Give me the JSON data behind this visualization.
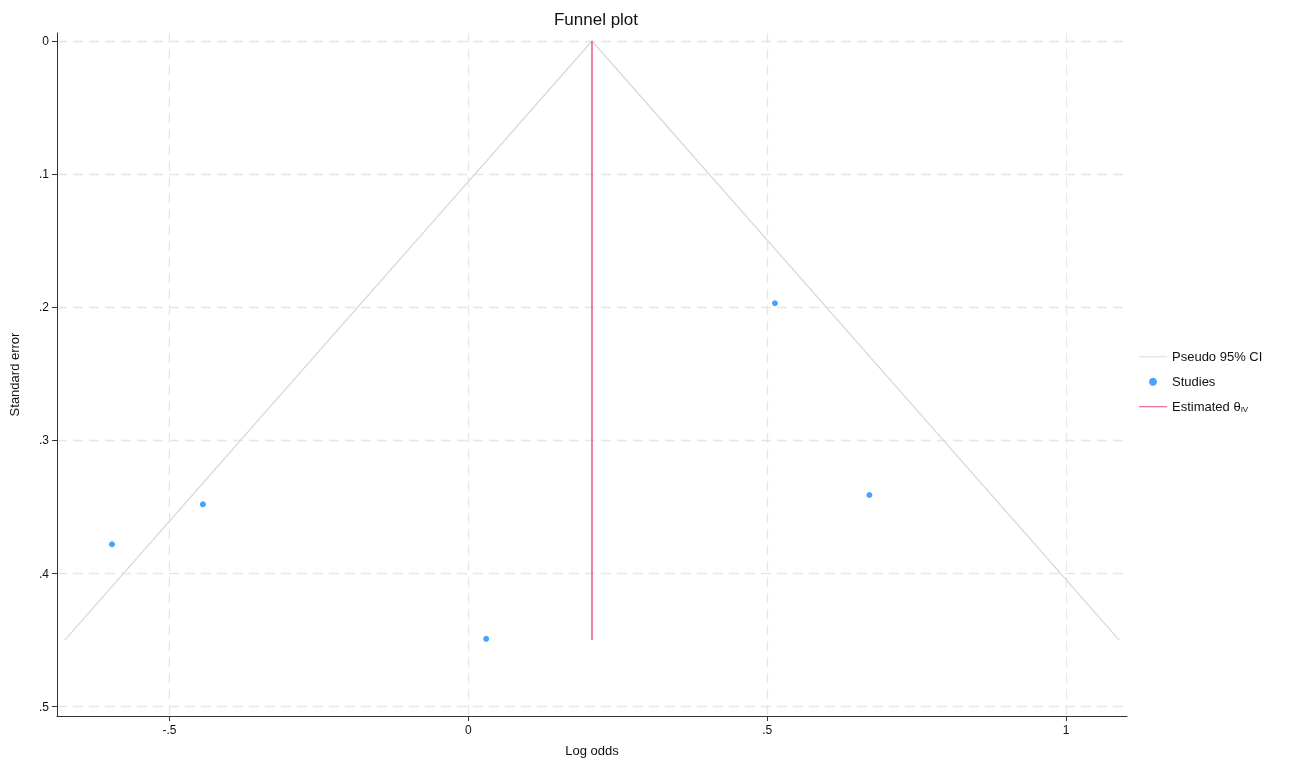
{
  "chart_data": {
    "type": "scatter",
    "title": "Funnel plot",
    "xlabel": "Log odds",
    "ylabel": "Standard error",
    "xlim": [
      -0.688,
      1.102
    ],
    "ylim": [
      0.507,
      -0.006
    ],
    "xticks": [
      {
        "value": -0.5,
        "label": "-.5"
      },
      0,
      {
        "value": 0.5,
        "label": ".5"
      },
      1
    ],
    "yticks": [
      0,
      {
        "value": 0.1,
        "label": ".1"
      },
      {
        "value": 0.2,
        "label": ".2"
      },
      {
        "value": 0.3,
        "label": ".3"
      },
      {
        "value": 0.4,
        "label": ".4"
      },
      {
        "value": 0.5,
        "label": ".5"
      }
    ],
    "grid": true,
    "legend": "right",
    "series": [
      {
        "name": "Pseudo 95% CI",
        "type": "line",
        "color": "#d9d9d9",
        "marker": "none",
        "line_style": "solid",
        "x": [
          -0.675,
          0.207,
          1.089
        ],
        "values": [
          0.45,
          0,
          0.45
        ]
      },
      {
        "name": "Studies",
        "type": "scatter",
        "color": "#1a8cff",
        "marker": "circle",
        "x": [
          -0.596,
          -0.444,
          0.03,
          0.513,
          0.671
        ],
        "values": [
          0.378,
          0.348,
          0.449,
          0.197,
          0.341
        ]
      },
      {
        "name": "Estimated θ$_{IV}$",
        "type": "line",
        "color": "#e0446a",
        "marker": "none",
        "line_style": "solid",
        "x": [
          0.207,
          0.207
        ],
        "values": [
          0,
          0.45
        ]
      }
    ]
  }
}
